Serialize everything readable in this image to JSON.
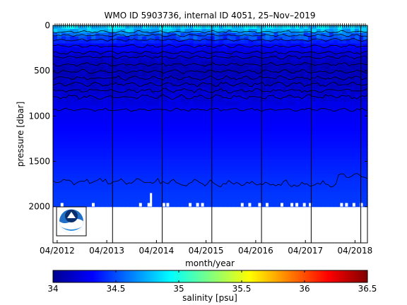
{
  "chart_data": {
    "type": "heatmap",
    "title": "WMO ID 5903736, internal ID 4051, 25–Nov–2019",
    "xlabel": "month/year",
    "ylabel": "pressure [dbar]",
    "x_ticks": [
      "04/2012",
      "04/2013",
      "04/2014",
      "04/2015",
      "04/2016",
      "04/2017",
      "04/2018"
    ],
    "y_ticks": [
      "0",
      "500",
      "1000",
      "1500",
      "2000"
    ],
    "ylim": [
      2400,
      0
    ],
    "xlim": [
      "2012-03",
      "2018-07"
    ],
    "y_reversed": true,
    "colorbar": {
      "label": "salinity [psu]",
      "range": [
        34,
        36.5
      ],
      "ticks": [
        "34",
        "34.5",
        "35",
        "35.5",
        "36",
        "36.5"
      ],
      "colormap": "jet"
    },
    "max_profile_depth": 2000,
    "approx_profile": [
      {
        "pressure": 0,
        "salinity": 34.85
      },
      {
        "pressure": 50,
        "salinity": 34.78
      },
      {
        "pressure": 100,
        "salinity": 34.55
      },
      {
        "pressure": 200,
        "salinity": 34.35
      },
      {
        "pressure": 300,
        "salinity": 34.22
      },
      {
        "pressure": 400,
        "salinity": 34.16
      },
      {
        "pressure": 500,
        "salinity": 34.14
      },
      {
        "pressure": 650,
        "salinity": 34.17
      },
      {
        "pressure": 800,
        "salinity": 34.22
      },
      {
        "pressure": 950,
        "salinity": 34.28
      },
      {
        "pressure": 1300,
        "salinity": 34.34
      },
      {
        "pressure": 1700,
        "salinity": 34.42
      },
      {
        "pressure": 2000,
        "salinity": 34.46
      }
    ],
    "contour_depths": [
      70,
      110,
      160,
      230,
      300,
      350,
      430,
      510,
      580,
      650,
      720,
      790,
      930,
      1720
    ],
    "logo": "NOAA"
  }
}
